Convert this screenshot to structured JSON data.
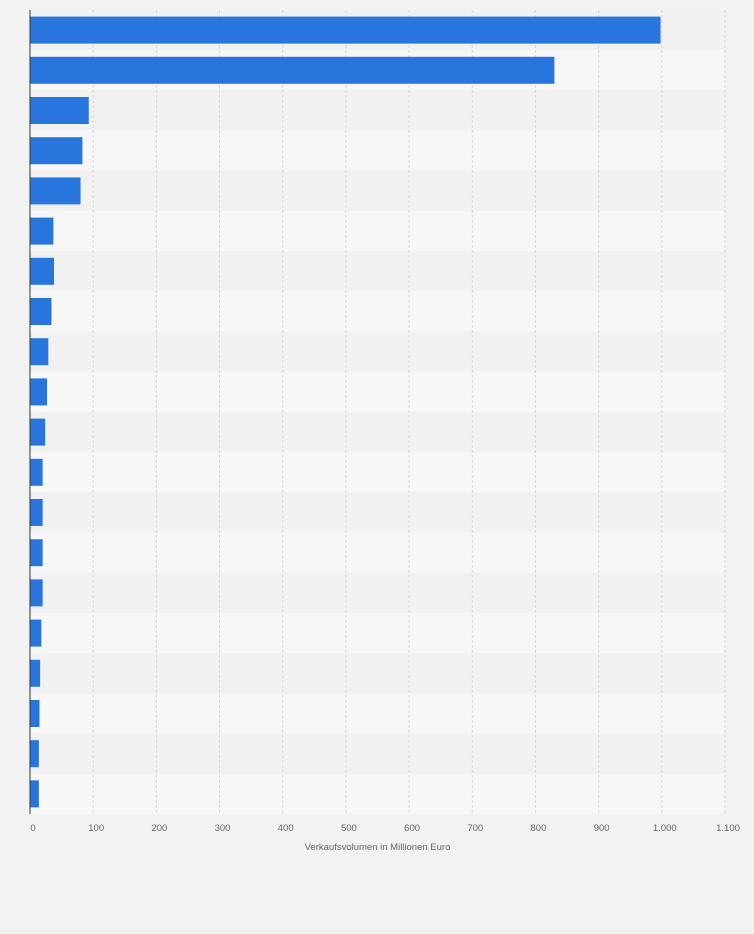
{
  "chart_data": {
    "type": "bar",
    "orientation": "horizontal",
    "title": "",
    "xlabel": "Verkaufsvolumen in Millionen Euro",
    "ylabel": "",
    "xlim": [
      0,
      1100
    ],
    "x_ticks": [
      0,
      100,
      200,
      300,
      400,
      500,
      600,
      700,
      800,
      900,
      1000,
      1100
    ],
    "x_tick_labels": [
      "0",
      "100",
      "200",
      "300",
      "400",
      "500",
      "600",
      "700",
      "800",
      "900",
      "1.000",
      "1.100"
    ],
    "categories": [
      "",
      "",
      "",
      "",
      "",
      "",
      "",
      "",
      "",
      "",
      "",
      "",
      "",
      "",
      "",
      "",
      "",
      "",
      "",
      ""
    ],
    "values": [
      998,
      830,
      93,
      83,
      80,
      37,
      38,
      34,
      29,
      27,
      24,
      20,
      20,
      20,
      20,
      18,
      16,
      15,
      14,
      14
    ],
    "grid": true,
    "legend": "none",
    "colors": {
      "bar": "#2876dd",
      "page_background": "#f2f2f2",
      "band_light": "#f7f7f7",
      "band_dark": "#f1f1f1",
      "grid": "#d8d8d8",
      "axis": "#333333",
      "text": "#666666"
    }
  }
}
